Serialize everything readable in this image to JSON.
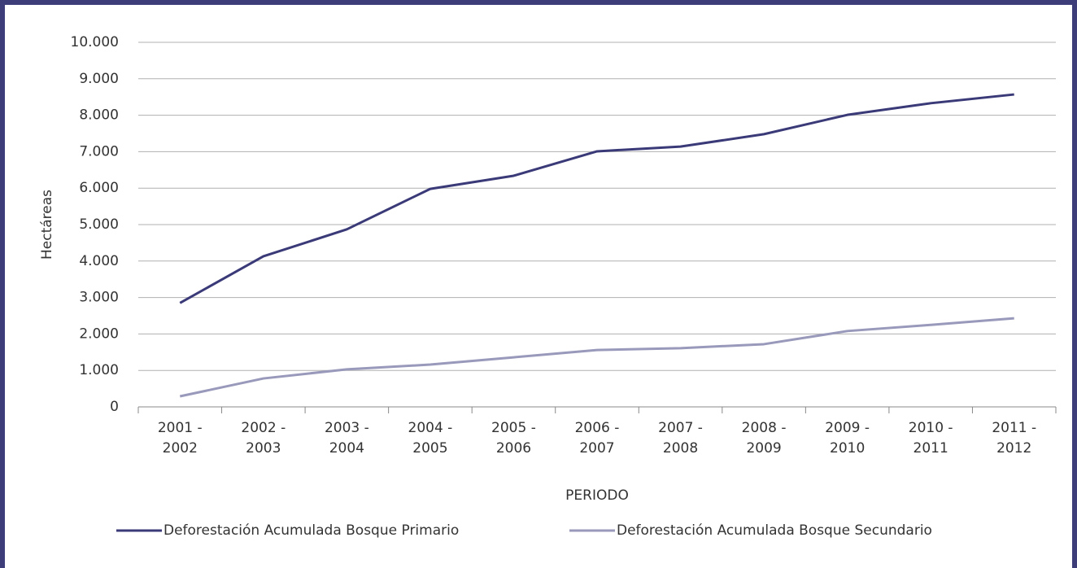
{
  "chart_data": {
    "type": "line",
    "xlabel": "PERIODO",
    "ylabel": "Hectáreas",
    "categories": [
      [
        "2001 -",
        "2002"
      ],
      [
        "2002 -",
        "2003"
      ],
      [
        "2003 -",
        "2004"
      ],
      [
        "2004 -",
        "2005"
      ],
      [
        "2005 -",
        "2006"
      ],
      [
        "2006 -",
        "2007"
      ],
      [
        "2007 -",
        "2008"
      ],
      [
        "2008 -",
        "2009"
      ],
      [
        "2009 -",
        "2010"
      ],
      [
        "2010 -",
        "2011"
      ],
      [
        "2011 -",
        "2012"
      ]
    ],
    "series": [
      {
        "name": "Deforestación Acumulada Bosque Primario",
        "color": "#3b3a78",
        "values": [
          2850,
          4130,
          4870,
          5980,
          6340,
          7010,
          7140,
          7480,
          8010,
          8330,
          8570
        ]
      },
      {
        "name": "Deforestación Acumulada Bosque Secundario",
        "color": "#9999bb",
        "values": [
          290,
          780,
          1030,
          1160,
          1360,
          1560,
          1610,
          1720,
          2080,
          2250,
          2430
        ]
      }
    ],
    "ylim": [
      0,
      10000
    ],
    "yticks": [
      0,
      {
        "value": 1000,
        "label": "1.000"
      },
      {
        "value": 2000,
        "label": "2.000"
      },
      {
        "value": 3000,
        "label": "3.000"
      },
      {
        "value": 4000,
        "label": "4.000"
      },
      {
        "value": 5000,
        "label": "5.000"
      },
      {
        "value": 6000,
        "label": "6.000"
      },
      {
        "value": 7000,
        "label": "7.000"
      },
      {
        "value": 8000,
        "label": "8.000"
      },
      {
        "value": 9000,
        "label": "9.000"
      },
      {
        "value": 10000,
        "label": "10.000"
      }
    ],
    "grid": true,
    "legend": "bottom"
  }
}
